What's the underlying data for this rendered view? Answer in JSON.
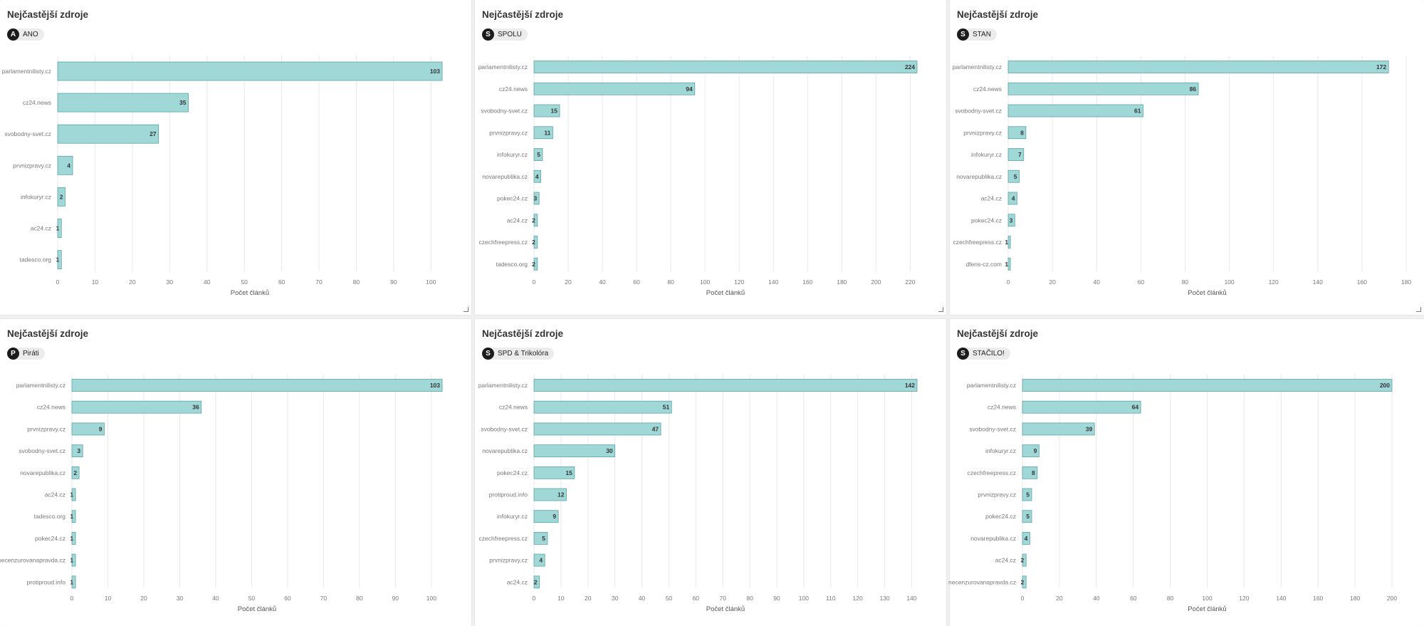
{
  "colors": {
    "bar_fill": "#a0d8d8",
    "bar_stroke": "#5fa3a3",
    "grid": "#e8e8e8",
    "tick_text": "#777777",
    "value_text": "#333333"
  },
  "x_axis_label": "Počet článků",
  "cards": [
    {
      "title": "Nejčastější zdroje",
      "party": {
        "icon": "A",
        "name": "ANO"
      }
    },
    {
      "title": "Nejčastější zdroje",
      "party": {
        "icon": "S",
        "name": "SPOLU"
      }
    },
    {
      "title": "Nejčastější zdroje",
      "party": {
        "icon": "S",
        "name": "STAN"
      }
    },
    {
      "title": "Nejčastější zdroje",
      "party": {
        "icon": "P",
        "name": "Piráti"
      }
    },
    {
      "title": "Nejčastější zdroje",
      "party": {
        "icon": "S",
        "name": "SPD & Trikolóra"
      }
    },
    {
      "title": "Nejčastější zdroje",
      "party": {
        "icon": "S",
        "name": "STAČILO!"
      }
    }
  ],
  "chart_data": [
    {
      "type": "bar",
      "orientation": "horizontal",
      "title": "Nejčastější zdroje",
      "xlabel": "Počet článků",
      "categories": [
        "parlamentnilisty.cz",
        "cz24.news",
        "svobodny-svet.cz",
        "prvnizpravy.cz",
        "infokuryr.cz",
        "ac24.cz",
        "tadesco.org"
      ],
      "values": [
        103,
        35,
        27,
        4,
        2,
        1,
        1
      ],
      "xlim": [
        0,
        103
      ],
      "xticks": [
        0,
        10,
        20,
        30,
        40,
        50,
        60,
        70,
        80,
        90,
        100
      ],
      "grid": true
    },
    {
      "type": "bar",
      "orientation": "horizontal",
      "title": "Nejčastější zdroje",
      "xlabel": "Počet článků",
      "categories": [
        "parlamentnilisty.cz",
        "cz24.news",
        "svobodny-svet.cz",
        "prvnizpravy.cz",
        "infokuryr.cz",
        "novarepublika.cz",
        "pokec24.cz",
        "ac24.cz",
        "czechfreepress.cz",
        "tadesco.org"
      ],
      "values": [
        224,
        94,
        15,
        11,
        5,
        4,
        3,
        2,
        2,
        2
      ],
      "xlim": [
        0,
        224
      ],
      "xticks": [
        0,
        20,
        40,
        60,
        80,
        100,
        120,
        140,
        160,
        180,
        200,
        220
      ],
      "grid": true
    },
    {
      "type": "bar",
      "orientation": "horizontal",
      "title": "Nejčastější zdroje",
      "xlabel": "Počet článků",
      "categories": [
        "parlamentnilisty.cz",
        "cz24.news",
        "svobodny-svet.cz",
        "prvnizpravy.cz",
        "infokuryr.cz",
        "novarepublika.cz",
        "ac24.cz",
        "pokec24.cz",
        "czechfreepress.cz",
        "dfens-cz.com"
      ],
      "values": [
        172,
        86,
        61,
        8,
        7,
        5,
        4,
        3,
        1,
        1
      ],
      "xlim": [
        0,
        180
      ],
      "xticks": [
        0,
        20,
        40,
        60,
        80,
        100,
        120,
        140,
        160,
        180
      ],
      "grid": true
    },
    {
      "type": "bar",
      "orientation": "horizontal",
      "title": "Nejčastější zdroje",
      "xlabel": "Počet článků",
      "categories": [
        "parlamentnilisty.cz",
        "cz24.news",
        "prvnizpravy.cz",
        "svobodny-svet.cz",
        "novarepublika.cz",
        "ac24.cz",
        "tadesco.org",
        "pokec24.cz",
        "necenzurovanapravda.cz",
        "protiproud.info"
      ],
      "values": [
        103,
        36,
        9,
        3,
        2,
        1,
        1,
        1,
        1,
        1
      ],
      "xlim": [
        0,
        103
      ],
      "xticks": [
        0,
        10,
        20,
        30,
        40,
        50,
        60,
        70,
        80,
        90,
        100
      ],
      "grid": true
    },
    {
      "type": "bar",
      "orientation": "horizontal",
      "title": "Nejčastější zdroje",
      "xlabel": "Počet článků",
      "categories": [
        "parlamentnilisty.cz",
        "cz24.news",
        "svobodny-svet.cz",
        "novarepublika.cz",
        "pokec24.cz",
        "protiproud.info",
        "infokuryr.cz",
        "czechfreepress.cz",
        "prvnizpravy.cz",
        "ac24.cz"
      ],
      "values": [
        142,
        51,
        47,
        30,
        15,
        12,
        9,
        5,
        4,
        2
      ],
      "xlim": [
        0,
        142
      ],
      "xticks": [
        0,
        10,
        20,
        30,
        40,
        50,
        60,
        70,
        80,
        90,
        100,
        110,
        120,
        130,
        140
      ],
      "grid": true
    },
    {
      "type": "bar",
      "orientation": "horizontal",
      "title": "Nejčastější zdroje",
      "xlabel": "Počet článků",
      "categories": [
        "parlamentnilisty.cz",
        "cz24.news",
        "svobodny-svet.cz",
        "infokuryr.cz",
        "czechfreepress.cz",
        "prvnizpravy.cz",
        "pokec24.cz",
        "novarepublika.cz",
        "ac24.cz",
        "necenzurovanapravda.cz"
      ],
      "values": [
        200,
        64,
        39,
        9,
        8,
        5,
        5,
        4,
        2,
        2
      ],
      "xlim": [
        0,
        200
      ],
      "xticks": [
        0,
        20,
        40,
        60,
        80,
        100,
        120,
        140,
        160,
        180,
        200
      ],
      "grid": true
    }
  ]
}
